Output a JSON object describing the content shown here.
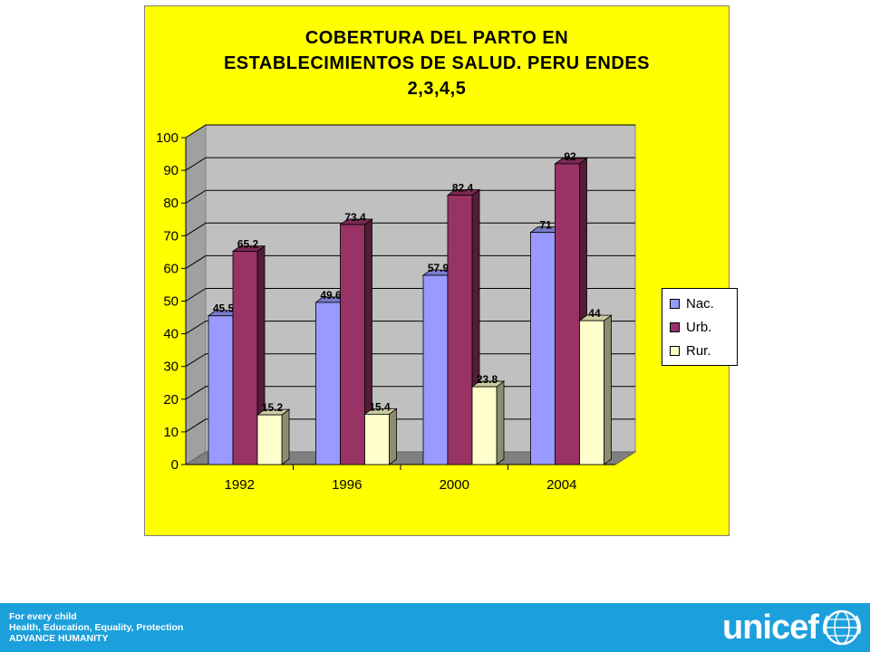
{
  "chart_data": {
    "type": "bar",
    "title": "COBERTURA DEL PARTO EN\nESTABLECIMIENTOS DE SALUD. PERU ENDES\n2,3,4,5",
    "categories": [
      "1992",
      "1996",
      "2000",
      "2004"
    ],
    "series": [
      {
        "name": "Nac.",
        "values": [
          45.5,
          49.6,
          57.9,
          71
        ],
        "labels": [
          "45.5",
          "49.6",
          "57.9",
          "71"
        ],
        "color": "#9999ff"
      },
      {
        "name": "Urb.",
        "values": [
          65.2,
          73.4,
          82.4,
          92
        ],
        "labels": [
          "65.2",
          "73.4",
          "82.4",
          "92"
        ],
        "color": "#993366"
      },
      {
        "name": "Rur.",
        "values": [
          15.2,
          15.4,
          23.8,
          44
        ],
        "labels": [
          "15.2",
          "15.4",
          "23.8",
          "44"
        ],
        "color": "#ffffcc"
      }
    ],
    "yticks": [
      "0",
      "10",
      "20",
      "30",
      "40",
      "50",
      "60",
      "70",
      "80",
      "90",
      "100"
    ],
    "ylim": [
      0,
      100
    ],
    "grid": true,
    "legend": "right",
    "three_d": true,
    "background": "#ffff00",
    "plot_wall": "#c0c0c0",
    "floor": "#808080"
  },
  "footer": {
    "line1": "For every child",
    "line2": "Health, Education, Equality, Protection",
    "line3": "ADVANCE HUMANITY",
    "logo_text": "unicef",
    "bg_color": "#1ca0dc"
  }
}
